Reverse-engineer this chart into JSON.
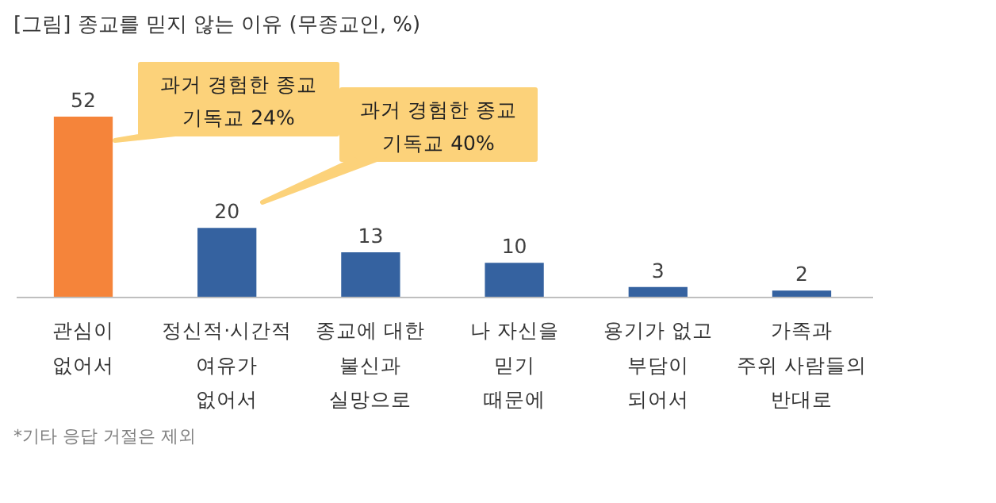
{
  "chart_data": {
    "type": "bar",
    "title": "[그림] 종교를 믿지 않는 이유 (무종교인, %)",
    "categories": [
      "관심이\n없어서",
      "정신적·시간적\n여유가\n없어서",
      "종교에 대한\n불신과\n실망으로",
      "나 자신을\n믿기\n때문에",
      "용기가 없고\n부담이\n되어서",
      "가족과\n주위 사람들의\n반대로"
    ],
    "values": [
      52,
      20,
      13,
      10,
      3,
      2
    ],
    "colors": [
      "#f5843a",
      "#3562a0",
      "#3562a0",
      "#3562a0",
      "#3562a0",
      "#3562a0"
    ],
    "data_labels": true,
    "grid": false,
    "annotations": [
      "과거 경험한 종교\n기독교 24%",
      "과거 경험한 종교\n기독교 40%",
      "*기타 응답 거절은 제외"
    ]
  }
}
